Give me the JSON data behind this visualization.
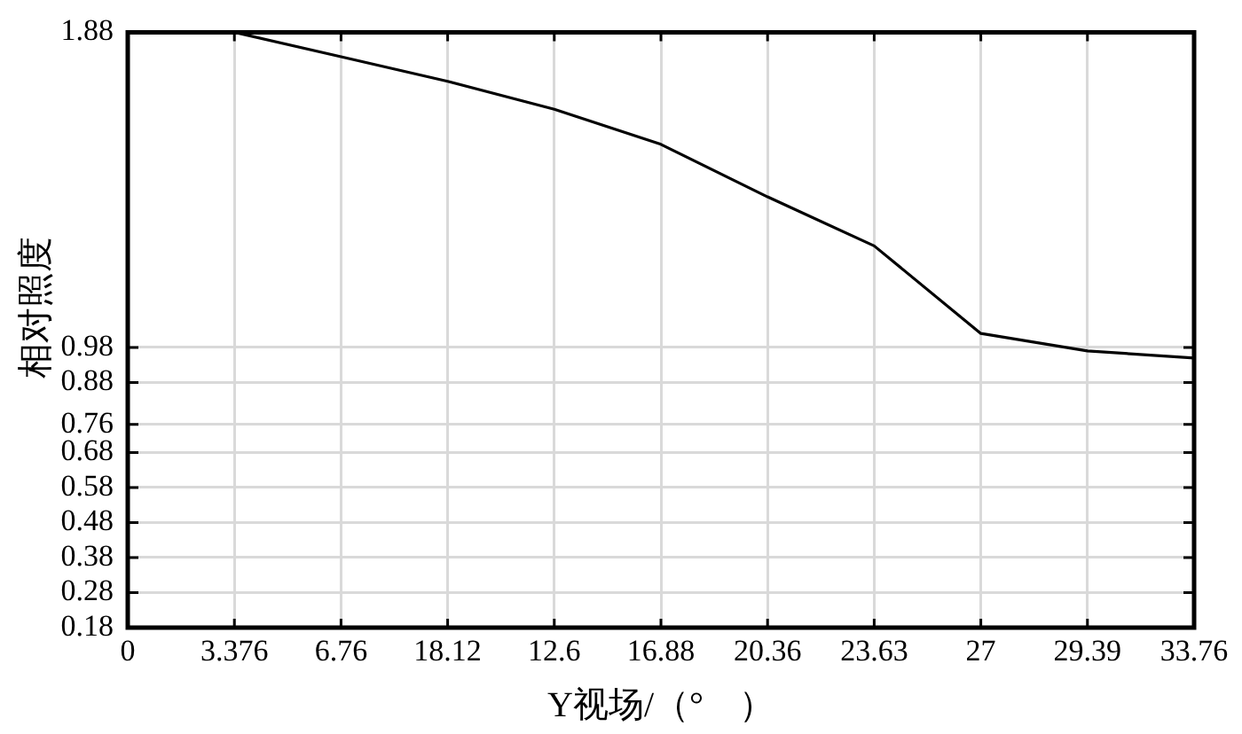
{
  "chart_data": {
    "type": "line",
    "xlabel": "Y视场/（°　）",
    "ylabel": "相对照度",
    "categories": [
      "0",
      "3.376",
      "6.76",
      "18.12",
      "12.6",
      "16.88",
      "20.36",
      "23.63",
      "27",
      "29.39",
      "33.76"
    ],
    "ylim": [
      0.18,
      1.88
    ],
    "yticks": [
      0.18,
      0.28,
      0.38,
      0.48,
      0.58,
      0.68,
      0.76,
      0.88,
      0.98,
      1.88
    ],
    "grid": true,
    "marker": "none",
    "line_style": "solid",
    "series": [
      {
        "color": "#000000",
        "values": [
          1.88,
          1.88,
          1.81,
          1.74,
          1.66,
          1.56,
          1.41,
          1.27,
          1.02,
          0.97,
          0.95
        ]
      }
    ]
  }
}
